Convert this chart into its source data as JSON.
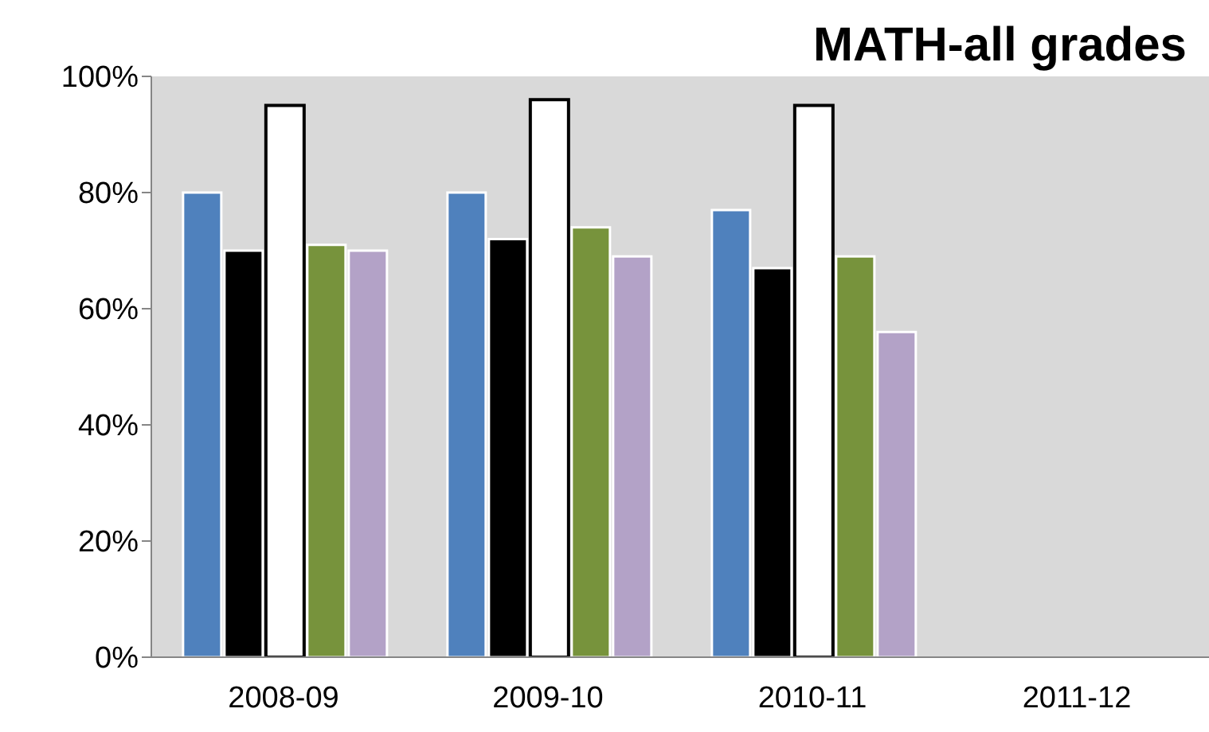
{
  "chart_data": {
    "type": "bar",
    "title": "MATH-all grades",
    "categories": [
      "2008-09",
      "2009-10",
      "2010-11",
      "2011-12"
    ],
    "series": [
      {
        "color": "#4f81bd",
        "values": [
          80,
          80,
          77,
          null
        ]
      },
      {
        "color": "#000000",
        "values": [
          70,
          72,
          67,
          null
        ]
      },
      {
        "color": "#ffffff",
        "values": [
          95,
          96,
          95,
          null
        ]
      },
      {
        "color": "#77933c",
        "values": [
          71,
          74,
          69,
          null
        ]
      },
      {
        "color": "#b3a2c7",
        "values": [
          70,
          69,
          56,
          null
        ]
      }
    ],
    "ylim": [
      0,
      100
    ],
    "yticks": [
      {
        "value": 0,
        "label": "0%"
      },
      {
        "value": 20,
        "label": "20%"
      },
      {
        "value": 40,
        "label": "40%"
      },
      {
        "value": 60,
        "label": "60%"
      },
      {
        "value": 80,
        "label": "80%"
      },
      {
        "value": 100,
        "label": "100%"
      }
    ],
    "tick_labels": true
  }
}
